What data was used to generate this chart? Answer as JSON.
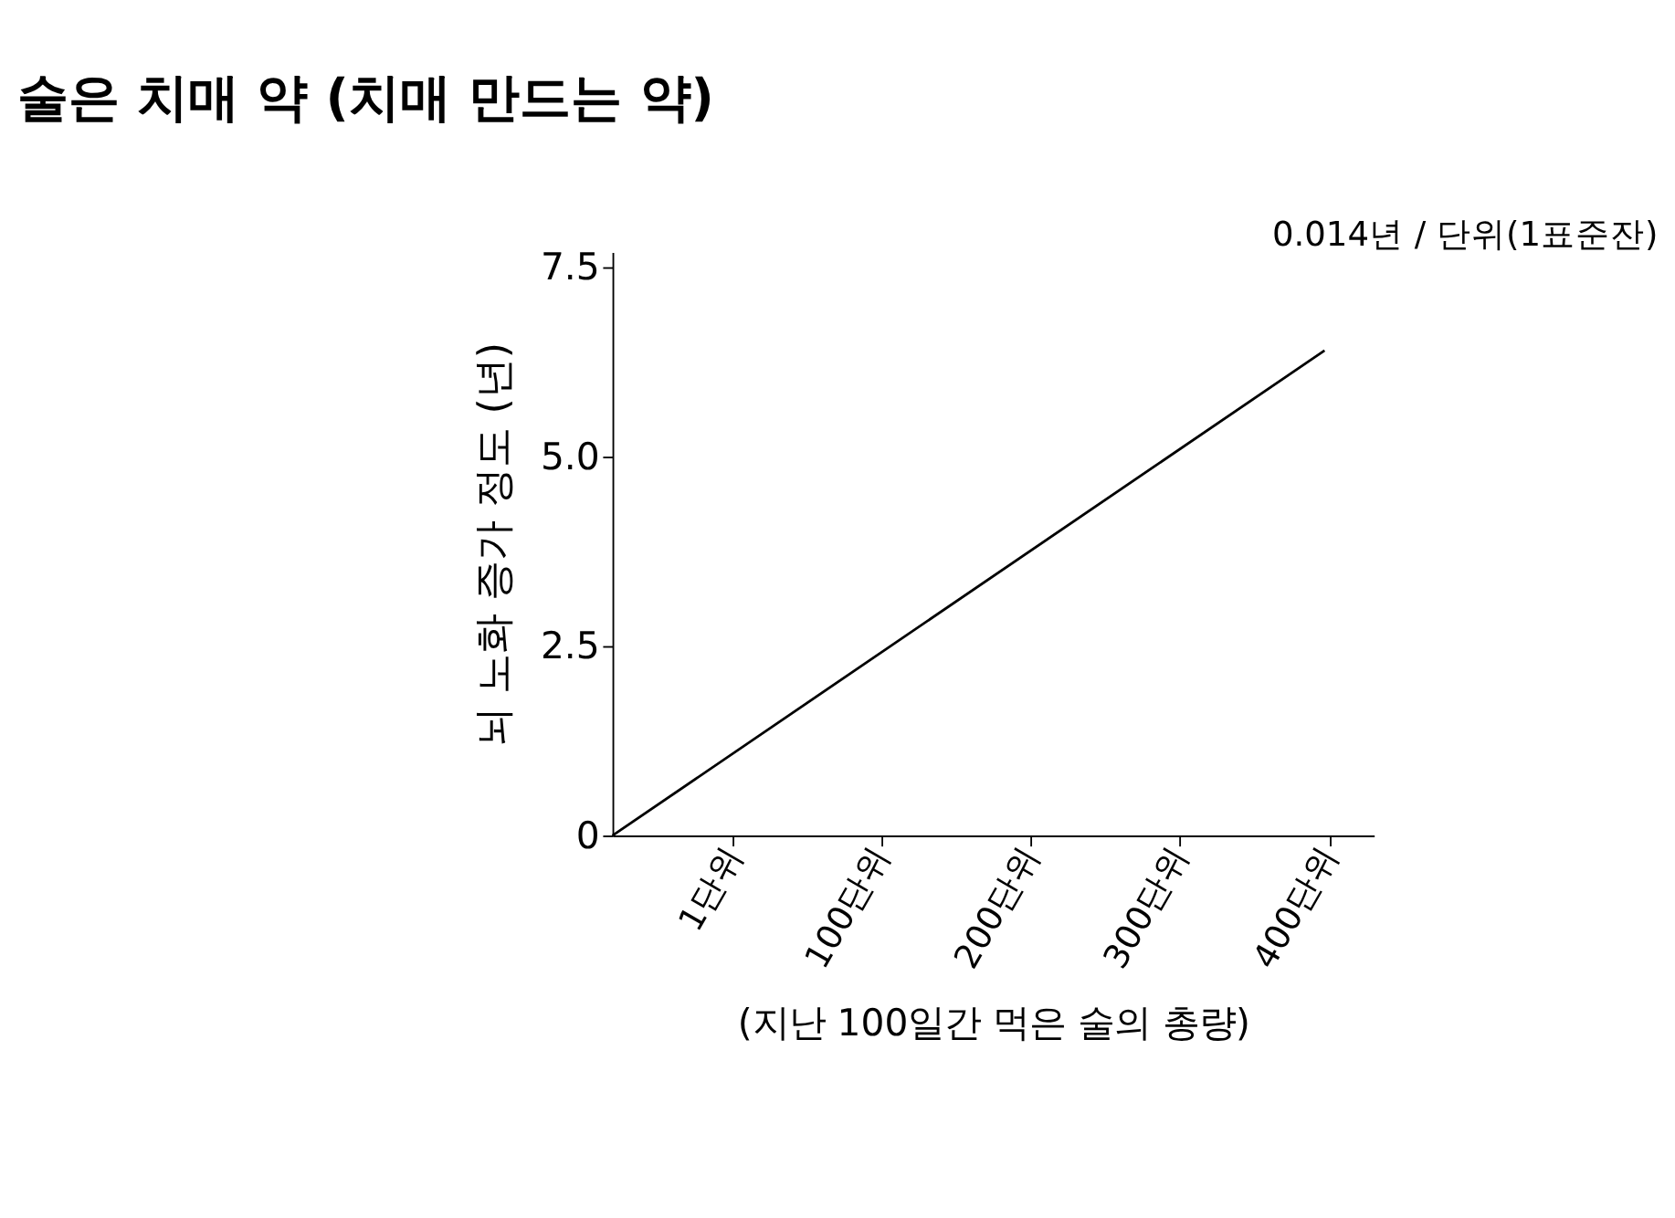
{
  "chart_data": {
    "type": "line",
    "title": "술은 치매 약 (치매 만드는 약)",
    "xlabel": "(지난 100일간 먹은 술의 총량)",
    "ylabel": "뇌 노화 증가 정도 (년)",
    "annotations": [
      "0.014년 / 단위(1표준잔)"
    ],
    "x": [
      -80,
      397
    ],
    "series": [
      {
        "color": "#000000",
        "values": [
          0,
          6.4
        ]
      }
    ],
    "xlim": [
      -80,
      430
    ],
    "xticks": [
      {
        "value": 1,
        "label": "1단위"
      },
      {
        "value": 100,
        "label": "100단위"
      },
      {
        "value": 200,
        "label": "200단위"
      },
      {
        "value": 300,
        "label": "300단위"
      },
      {
        "value": 400,
        "label": "400단위"
      }
    ],
    "ylim": [
      0,
      7.7
    ],
    "yticks": [
      {
        "value": 0,
        "label": "0"
      },
      {
        "value": 2.5,
        "label": "2.5"
      },
      {
        "value": 5,
        "label": "5.0"
      },
      {
        "value": 7.5,
        "label": "7.5"
      }
    ],
    "grid": false,
    "marker": "none",
    "line_style": "solid"
  }
}
